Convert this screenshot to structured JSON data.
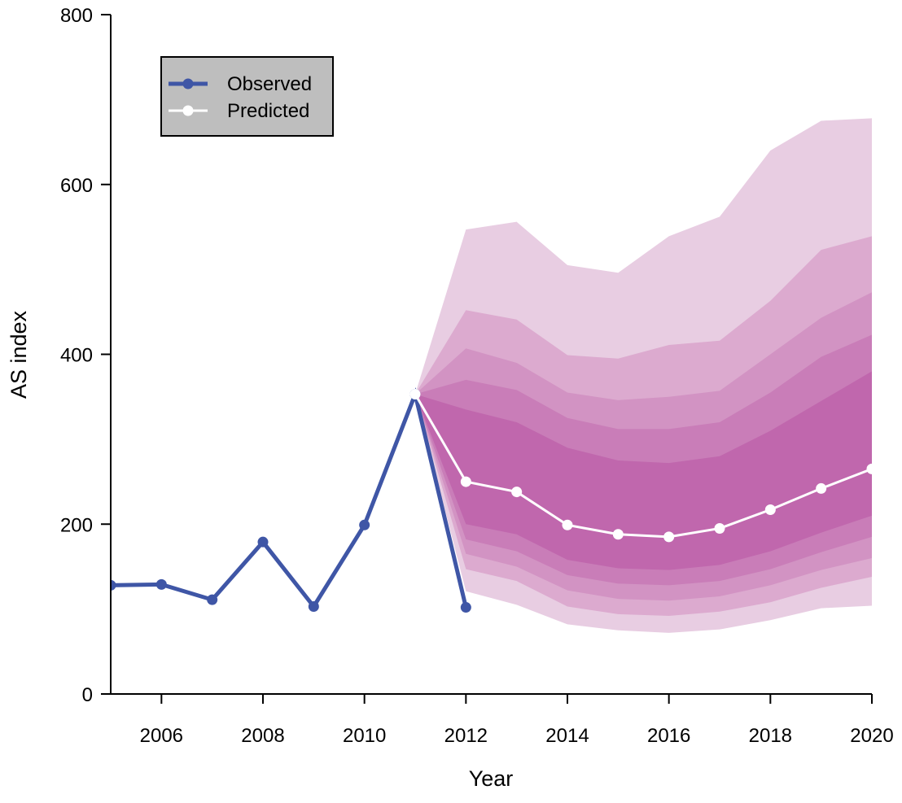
{
  "chart_data": {
    "type": "fan",
    "xlabel": "Year",
    "ylabel": "AS index",
    "xlim": [
      2005,
      2020
    ],
    "xticks": [
      2006,
      2008,
      2010,
      2012,
      2014,
      2016,
      2018,
      2020
    ],
    "ylim": [
      0,
      800
    ],
    "yticks": [
      0,
      200,
      400,
      600,
      800
    ],
    "legend": "top-left",
    "series": [
      {
        "name": "Observed",
        "color": "#3f56a6",
        "x": [
          2005,
          2006,
          2007,
          2008,
          2009,
          2010,
          2011,
          2012
        ],
        "values": [
          128,
          129,
          111,
          179,
          103,
          199,
          353,
          102
        ]
      },
      {
        "name": "Predicted",
        "color": "#ffffff",
        "x": [
          2011,
          2012,
          2013,
          2014,
          2015,
          2016,
          2017,
          2018,
          2019,
          2020
        ],
        "values": [
          353,
          250,
          238,
          199,
          188,
          185,
          195,
          217,
          242,
          265
        ]
      }
    ],
    "fan_x": [
      2011,
      2012,
      2013,
      2014,
      2015,
      2016,
      2017,
      2018,
      2019,
      2020
    ],
    "fan": [
      {
        "color": "#e8cde2",
        "upper": [
          353,
          547,
          556,
          505,
          496,
          539,
          562,
          640,
          675,
          678
        ],
        "lower": [
          353,
          121,
          105,
          82,
          75,
          72,
          76,
          87,
          101,
          104
        ]
      },
      {
        "color": "#dcaacf",
        "upper": [
          353,
          452,
          441,
          399,
          395,
          411,
          416,
          463,
          523,
          539
        ],
        "lower": [
          353,
          147,
          133,
          103,
          94,
          92,
          97,
          108,
          125,
          138
        ]
      },
      {
        "color": "#d293c3",
        "upper": [
          353,
          407,
          390,
          355,
          346,
          350,
          357,
          400,
          443,
          473
        ],
        "lower": [
          353,
          165,
          150,
          122,
          112,
          110,
          115,
          128,
          146,
          160
        ]
      },
      {
        "color": "#c97db8",
        "upper": [
          353,
          370,
          358,
          325,
          312,
          312,
          320,
          355,
          397,
          423
        ],
        "lower": [
          353,
          182,
          168,
          140,
          130,
          128,
          133,
          147,
          167,
          185
        ]
      },
      {
        "color": "#c067ad",
        "upper": [
          353,
          335,
          320,
          290,
          275,
          272,
          280,
          310,
          345,
          380
        ],
        "lower": [
          353,
          200,
          188,
          158,
          148,
          146,
          152,
          168,
          190,
          210
        ]
      }
    ]
  }
}
